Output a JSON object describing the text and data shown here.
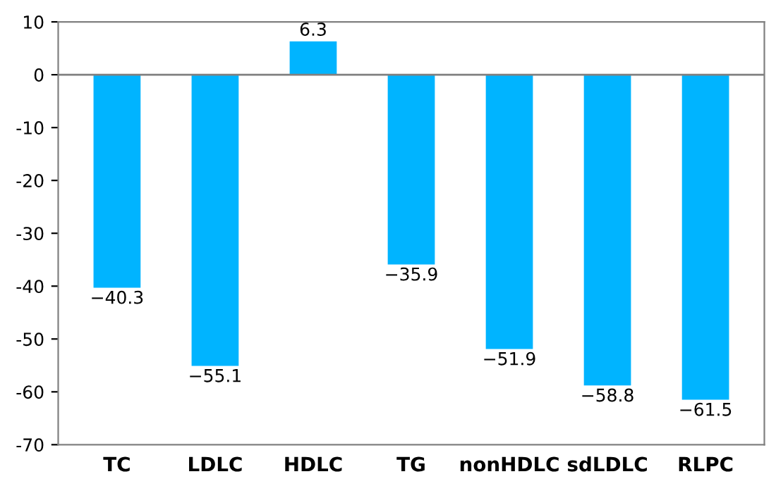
{
  "chart_data": {
    "type": "bar",
    "categories": [
      "TC",
      "LDLC",
      "HDLC",
      "TG",
      "nonHDLC",
      "sdLDLC",
      "RLPC"
    ],
    "values": [
      -40.3,
      -55.1,
      6.3,
      -35.9,
      -51.9,
      -58.8,
      -61.5
    ],
    "value_labels": [
      "−40.3",
      "−55.1",
      "6.3",
      "−35.9",
      "−51.9",
      "−58.8",
      "−61.5"
    ],
    "color": "#00b4ff",
    "ylim": [
      -70,
      10
    ],
    "yticks": [
      -70,
      -60,
      -50,
      -40,
      -30,
      -20,
      -10,
      0,
      10
    ],
    "ref_lines": [
      {
        "axis": "y",
        "value": 0,
        "color": "#808080"
      }
    ],
    "grid": false,
    "legend": false
  }
}
